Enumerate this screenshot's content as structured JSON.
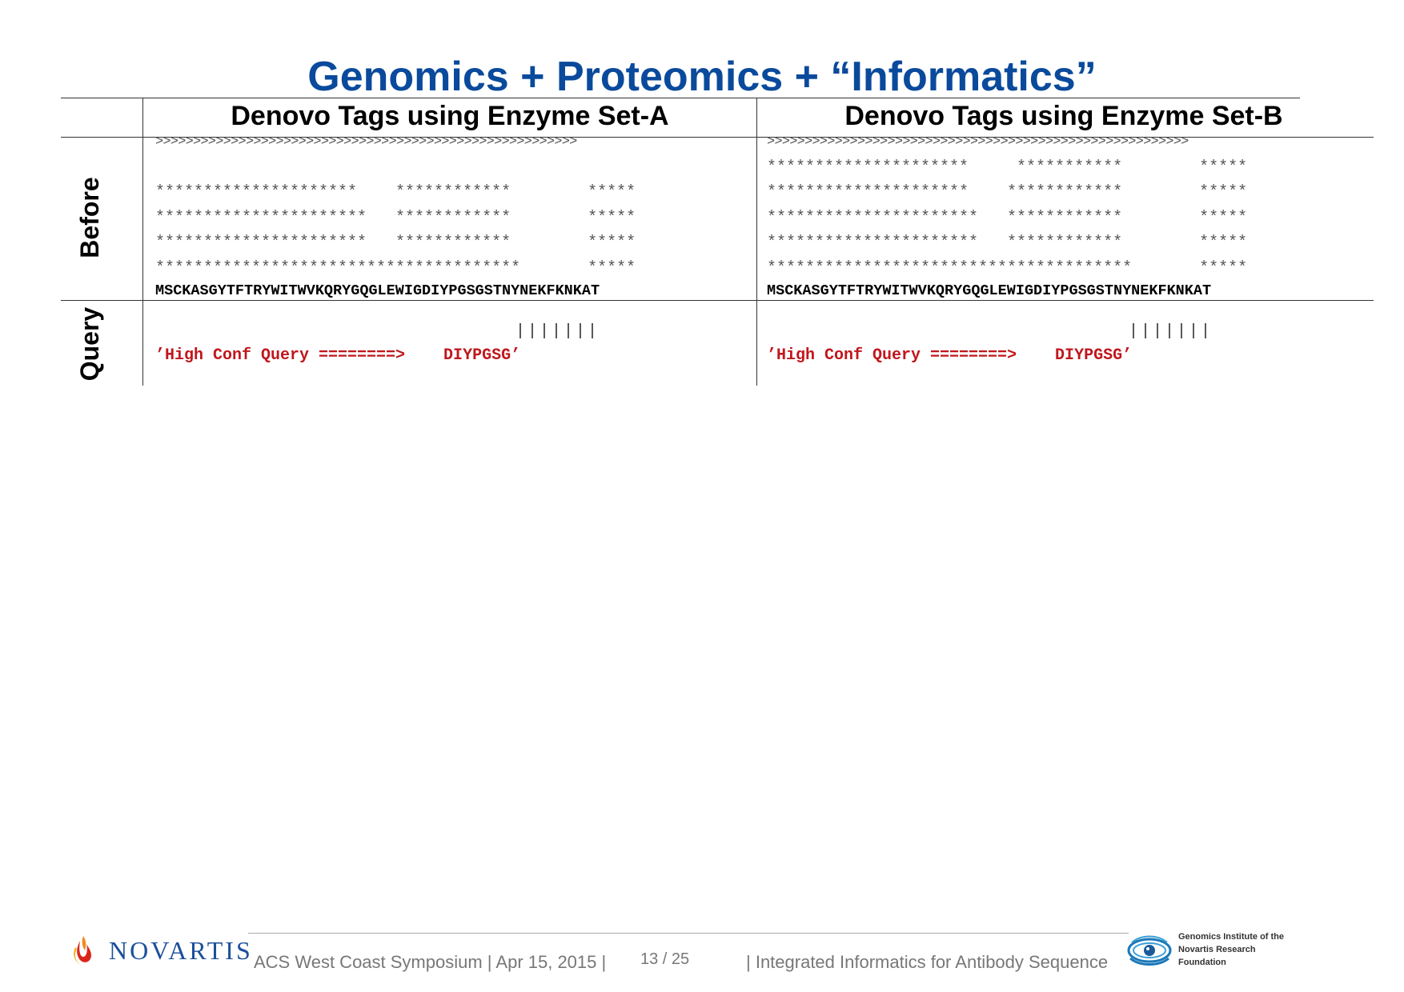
{
  "slide": {
    "title": "Genomics + Proteomics + “Informatics”",
    "columns": [
      {
        "header": "Denovo Tags using Enzyme Set-A",
        "before_lines": [
          ">>>>>>>>>>>>>>>>>>>>>>>>>>>>>>>>>>>>>>>>>>>>>>>>>>>>>>>>",
          "",
          "*********************    ************        *****",
          "**********************   ************        *****",
          "**********************   ************        *****",
          "**************************************       *****"
        ],
        "sequence": "MSCKASGYTFTRYWITWVKQRYGQGLEWIGDIYPGSGSTNYNEKFKNKAT",
        "bars": "|||||||",
        "query": "’High Conf Query ========>    DIYPGSG’"
      },
      {
        "header": "Denovo Tags using Enzyme Set-B",
        "before_lines": [
          ">>>>>>>>>>>>>>>>>>>>>>>>>>>>>>>>>>>>>>>>>>>>>>>>>>>>>>>>",
          "*********************     ***********        *****",
          "*********************    ************        *****",
          "**********************   ************        *****",
          "**********************   ************        *****",
          "**************************************       *****"
        ],
        "sequence": "MSCKASGYTFTRYWITWVKQRYGQGLEWIGDIYPGSGSTNYNEKFKNKAT",
        "bars": "|||||||",
        "query": "’High Conf Query ========>    DIYPGSG’"
      }
    ],
    "row_labels": {
      "before": "Before",
      "query": "Query"
    }
  },
  "footer": {
    "company": "NOVARTIS",
    "event": "ACS West Coast Symposium | Apr 15, 2015 |",
    "page": "13 / 25",
    "topic": "| Integrated Informatics for Antibody Sequence",
    "gnf_lines": [
      "Genomics Institute of the",
      "Novartis Research",
      "Foundation"
    ]
  },
  "colors": {
    "title": "#0a4a9c",
    "query_text": "#c0161c",
    "novartis_blue": "#1b4f9a",
    "novartis_orange": "#f08a1c",
    "novartis_red": "#d9261c"
  }
}
